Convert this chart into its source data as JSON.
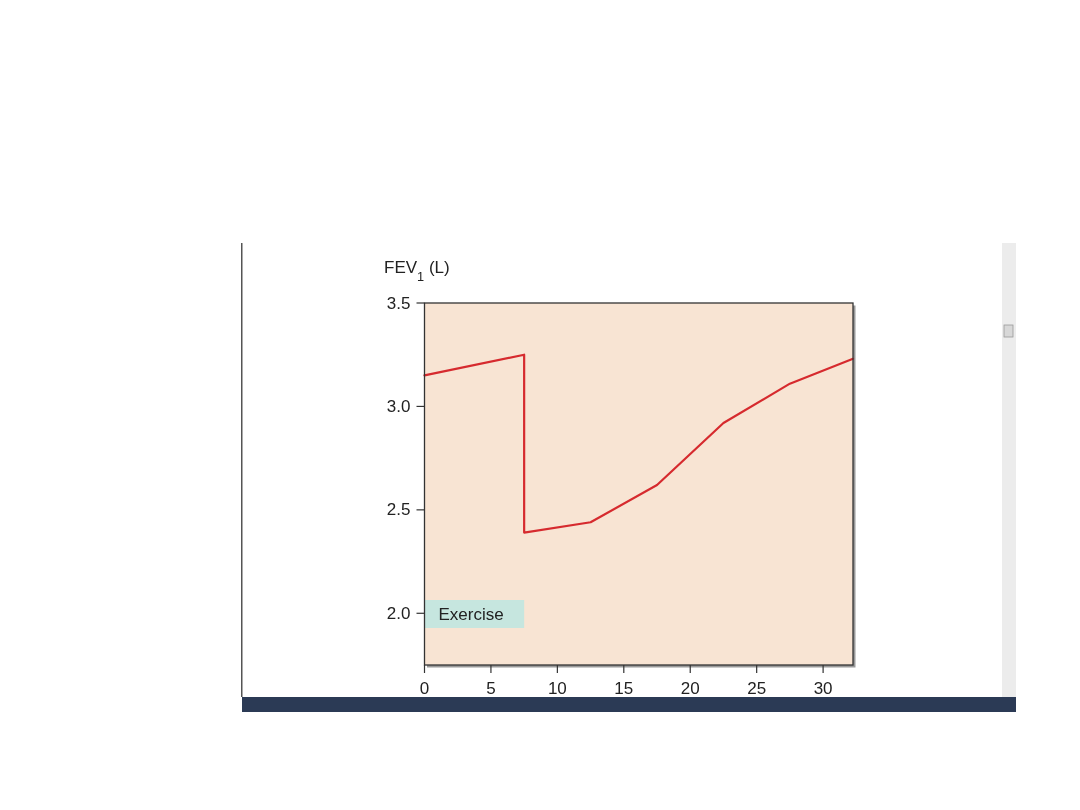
{
  "chart_data": {
    "type": "line",
    "ylabel": "FEV$_{1}$ (L)",
    "x": [
      0,
      7.5,
      7.5,
      12.5,
      17.5,
      22.5,
      27.5,
      32.25
    ],
    "series": [
      {
        "color": "#d62a2e",
        "values": [
          3.15,
          3.25,
          2.39,
          2.44,
          2.62,
          2.92,
          3.11,
          3.23
        ]
      }
    ],
    "xlim": [
      0,
      32.25
    ],
    "ylim": [
      1.75,
      3.5
    ],
    "xticks": [
      0,
      5,
      10,
      15,
      20,
      25,
      30
    ],
    "yticks": [
      {
        "value": 2,
        "label": "2.0"
      },
      {
        "value": 2.5,
        "label": "2.5"
      },
      {
        "value": 3,
        "label": "3.0"
      },
      {
        "value": 3.5,
        "label": "3.5"
      }
    ],
    "bands": [
      {
        "axis": "x",
        "from": 0,
        "to": 7.5,
        "label": "Exercise",
        "color": "#c6e6df"
      }
    ]
  }
}
